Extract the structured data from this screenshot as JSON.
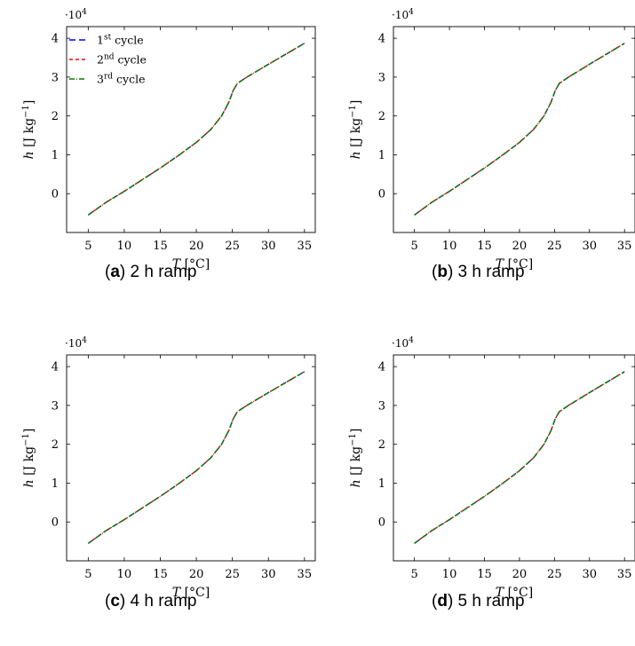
{
  "legend": [
    {
      "base": "1",
      "sup": "st",
      "rest": " cycle",
      "color": "#0000ff",
      "dash": "7 4"
    },
    {
      "base": "2",
      "sup": "nd",
      "rest": " cycle",
      "color": "#ff0000",
      "dash": "4 3"
    },
    {
      "base": "3",
      "sup": "rd",
      "rest": " cycle",
      "color": "#008000",
      "dash": "6 2 1 2"
    }
  ],
  "axis_text": {
    "x_label_var": "T",
    "x_label_unit": "[°C]",
    "y_label_var": "h",
    "y_label_unit_open": "[J kg",
    "y_label_unit_sup": "−1",
    "y_label_unit_close": "]",
    "y_scale_base": "·10",
    "y_scale_exp": "4"
  },
  "chart_data": [
    {
      "type": "line",
      "caption_letter": "a",
      "caption_text": "2 h ramp",
      "xlim": [
        2,
        36.5
      ],
      "ylim": [
        -1.0,
        4.3
      ],
      "xticks": [
        5,
        10,
        15,
        20,
        25,
        30,
        35
      ],
      "yticks": [
        0,
        1,
        2,
        3,
        4
      ],
      "y_multiplier": 10000,
      "series": [
        {
          "name": "1st cycle",
          "x": [
            5,
            7.5,
            10,
            12.5,
            15,
            17.5,
            20,
            22,
            23.5,
            24.5,
            25.1,
            25.5,
            25.7,
            27,
            30,
            32.5,
            35
          ],
          "y": [
            -0.55,
            -0.22,
            0.06,
            0.36,
            0.66,
            0.98,
            1.32,
            1.65,
            2.0,
            2.35,
            2.65,
            2.78,
            2.84,
            3.0,
            3.33,
            3.6,
            3.87
          ]
        },
        {
          "name": "2nd cycle",
          "x": [
            5,
            7.5,
            10,
            12.5,
            15,
            17.5,
            20,
            22,
            23.5,
            24.5,
            25.1,
            25.5,
            25.7,
            27,
            30,
            32.5,
            35
          ],
          "y": [
            -0.55,
            -0.22,
            0.06,
            0.36,
            0.66,
            0.98,
            1.32,
            1.65,
            2.0,
            2.35,
            2.65,
            2.78,
            2.84,
            3.0,
            3.33,
            3.6,
            3.87
          ]
        },
        {
          "name": "3rd cycle",
          "x": [
            5,
            7.5,
            10,
            12.5,
            15,
            17.5,
            20,
            22,
            23.5,
            24.5,
            25.1,
            25.5,
            25.7,
            27,
            30,
            32.5,
            35
          ],
          "y": [
            -0.55,
            -0.22,
            0.06,
            0.36,
            0.66,
            0.98,
            1.32,
            1.65,
            2.0,
            2.35,
            2.65,
            2.78,
            2.84,
            3.0,
            3.33,
            3.6,
            3.87
          ]
        }
      ]
    },
    {
      "type": "line",
      "caption_letter": "b",
      "caption_text": "3 h ramp",
      "xlim": [
        2,
        36.5
      ],
      "ylim": [
        -1.0,
        4.3
      ],
      "xticks": [
        5,
        10,
        15,
        20,
        25,
        30,
        35
      ],
      "yticks": [
        0,
        1,
        2,
        3,
        4
      ],
      "y_multiplier": 10000,
      "series": [
        {
          "name": "1st cycle",
          "x": [
            5,
            7.5,
            10,
            12.5,
            15,
            17.5,
            20,
            22,
            23.5,
            24.5,
            25.1,
            25.5,
            25.7,
            27,
            30,
            32.5,
            35
          ],
          "y": [
            -0.55,
            -0.22,
            0.06,
            0.36,
            0.66,
            0.98,
            1.32,
            1.65,
            2.0,
            2.35,
            2.65,
            2.78,
            2.84,
            3.0,
            3.33,
            3.6,
            3.87
          ]
        },
        {
          "name": "2nd cycle",
          "x": [
            5,
            7.5,
            10,
            12.5,
            15,
            17.5,
            20,
            22,
            23.5,
            24.5,
            25.1,
            25.5,
            25.7,
            27,
            30,
            32.5,
            35
          ],
          "y": [
            -0.55,
            -0.22,
            0.06,
            0.36,
            0.66,
            0.98,
            1.32,
            1.65,
            2.0,
            2.35,
            2.65,
            2.78,
            2.84,
            3.0,
            3.33,
            3.6,
            3.87
          ]
        },
        {
          "name": "3rd cycle",
          "x": [
            5,
            7.5,
            10,
            12.5,
            15,
            17.5,
            20,
            22,
            23.5,
            24.5,
            25.1,
            25.5,
            25.7,
            27,
            30,
            32.5,
            35
          ],
          "y": [
            -0.55,
            -0.22,
            0.06,
            0.36,
            0.66,
            0.98,
            1.32,
            1.65,
            2.0,
            2.35,
            2.65,
            2.78,
            2.84,
            3.0,
            3.33,
            3.6,
            3.87
          ]
        }
      ]
    },
    {
      "type": "line",
      "caption_letter": "c",
      "caption_text": "4 h ramp",
      "xlim": [
        2,
        36.5
      ],
      "ylim": [
        -1.0,
        4.3
      ],
      "xticks": [
        5,
        10,
        15,
        20,
        25,
        30,
        35
      ],
      "yticks": [
        0,
        1,
        2,
        3,
        4
      ],
      "y_multiplier": 10000,
      "series": [
        {
          "name": "1st cycle",
          "x": [
            5,
            7.5,
            10,
            12.5,
            15,
            17.5,
            20,
            22,
            23.5,
            24.5,
            25.1,
            25.5,
            25.7,
            27,
            30,
            32.5,
            35
          ],
          "y": [
            -0.55,
            -0.22,
            0.06,
            0.36,
            0.66,
            0.98,
            1.32,
            1.65,
            2.0,
            2.35,
            2.65,
            2.78,
            2.84,
            3.0,
            3.33,
            3.6,
            3.87
          ]
        },
        {
          "name": "2nd cycle",
          "x": [
            5,
            7.5,
            10,
            12.5,
            15,
            17.5,
            20,
            22,
            23.5,
            24.5,
            25.1,
            25.5,
            25.7,
            27,
            30,
            32.5,
            35
          ],
          "y": [
            -0.55,
            -0.22,
            0.06,
            0.36,
            0.66,
            0.98,
            1.32,
            1.65,
            2.0,
            2.35,
            2.65,
            2.78,
            2.84,
            3.0,
            3.33,
            3.6,
            3.87
          ]
        },
        {
          "name": "3rd cycle",
          "x": [
            5,
            7.5,
            10,
            12.5,
            15,
            17.5,
            20,
            22,
            23.5,
            24.5,
            25.1,
            25.5,
            25.7,
            27,
            30,
            32.5,
            35
          ],
          "y": [
            -0.55,
            -0.22,
            0.06,
            0.36,
            0.66,
            0.98,
            1.32,
            1.65,
            2.0,
            2.35,
            2.65,
            2.78,
            2.84,
            3.0,
            3.33,
            3.6,
            3.87
          ]
        }
      ]
    },
    {
      "type": "line",
      "caption_letter": "d",
      "caption_text": "5 h ramp",
      "xlim": [
        2,
        36.5
      ],
      "ylim": [
        -1.0,
        4.3
      ],
      "xticks": [
        5,
        10,
        15,
        20,
        25,
        30,
        35
      ],
      "yticks": [
        0,
        1,
        2,
        3,
        4
      ],
      "y_multiplier": 10000,
      "series": [
        {
          "name": "1st cycle",
          "x": [
            5,
            7.5,
            10,
            12.5,
            15,
            17.5,
            20,
            22,
            23.5,
            24.5,
            25.1,
            25.5,
            25.7,
            27,
            30,
            32.5,
            35
          ],
          "y": [
            -0.55,
            -0.22,
            0.06,
            0.36,
            0.66,
            0.98,
            1.32,
            1.65,
            2.0,
            2.35,
            2.65,
            2.78,
            2.84,
            3.0,
            3.33,
            3.6,
            3.87
          ]
        },
        {
          "name": "2nd cycle",
          "x": [
            5,
            7.5,
            10,
            12.5,
            15,
            17.5,
            20,
            22,
            23.5,
            24.5,
            25.1,
            25.5,
            25.7,
            27,
            30,
            32.5,
            35
          ],
          "y": [
            -0.55,
            -0.22,
            0.06,
            0.36,
            0.66,
            0.98,
            1.32,
            1.65,
            2.0,
            2.35,
            2.65,
            2.78,
            2.84,
            3.0,
            3.33,
            3.6,
            3.87
          ]
        },
        {
          "name": "3rd cycle",
          "x": [
            5,
            7.5,
            10,
            12.5,
            15,
            17.5,
            20,
            22,
            23.5,
            24.5,
            25.1,
            25.5,
            25.7,
            27,
            30,
            32.5,
            35
          ],
          "y": [
            -0.55,
            -0.22,
            0.06,
            0.36,
            0.66,
            0.98,
            1.32,
            1.65,
            2.0,
            2.35,
            2.65,
            2.78,
            2.84,
            3.0,
            3.33,
            3.6,
            3.87
          ]
        }
      ]
    }
  ]
}
